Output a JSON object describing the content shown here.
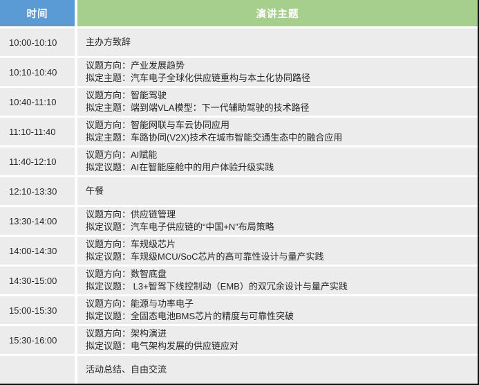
{
  "table": {
    "headers": {
      "time": "时间",
      "topic": "演讲主题"
    },
    "colors": {
      "time_header_bg": "#5B9BD5",
      "topic_header_bg": "#A6CF8D",
      "row_bg": "#ECECEC",
      "header_text": "#FFFFFF",
      "body_text": "#262626",
      "outer_border": "#111111"
    },
    "rows": [
      {
        "time": "10:00-10:10",
        "lines": [
          "主办方致辞"
        ]
      },
      {
        "time": "10:10-10:40",
        "lines": [
          "议题方向：产业发展趋势",
          "拟定主题：汽车电子全球化供应链重构与本土化协同路径"
        ]
      },
      {
        "time": "10:40-11:10",
        "lines": [
          "议题方向：智能驾驶",
          "拟定主题：端到端VLA模型：下一代辅助驾驶的技术路径"
        ]
      },
      {
        "time": "11:10-11:40",
        "lines": [
          "议题方向：智能网联与车云协同应用",
          "拟定主题：车路协同(V2X)技术在城市智能交通生态中的融合应用"
        ]
      },
      {
        "time": "11:40-12:10",
        "lines": [
          "议题方向：AI赋能",
          "拟定议题：AI在智能座舱中的用户体验升级实践"
        ]
      },
      {
        "time": "12:10-13:30",
        "lines": [
          "午餐"
        ]
      },
      {
        "time": "13:30-14:00",
        "lines": [
          "议题方向：供应链管理",
          "拟定议题：汽车电子供应链的“中国+N”布局策略"
        ]
      },
      {
        "time": "14:00-14:30",
        "lines": [
          "议题方向：车规级芯片",
          "拟定议题：车规级MCU/SoC芯片的高可靠性设计与量产实践"
        ]
      },
      {
        "time": "14:30-15:00",
        "lines": [
          "议题方向：数智底盘",
          "拟定议题： L3+智驾下线控制动（EMB）的双冗余设计与量产实践"
        ]
      },
      {
        "time": "15:00-15:30",
        "lines": [
          "议题方向：能源与功率电子",
          "拟定议题：全固态电池BMS芯片的精度与可靠性突破"
        ]
      },
      {
        "time": "15:30-16:00",
        "lines": [
          "议题方向：架构演进",
          "拟定议题：电气架构发展的供应链应对"
        ]
      },
      {
        "time": "",
        "lines": [
          "活动总结、自由交流"
        ]
      }
    ]
  }
}
